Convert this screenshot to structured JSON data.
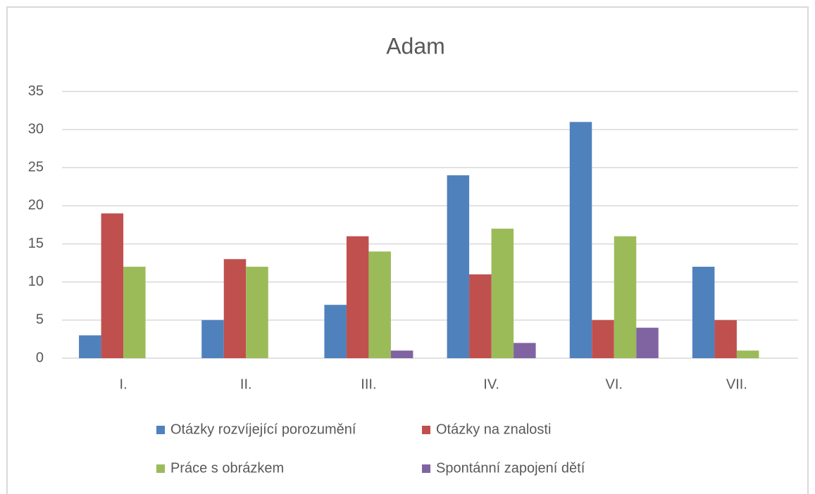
{
  "chart_data": {
    "type": "bar",
    "title": "Adam",
    "categories": [
      "I.",
      "II.",
      "III.",
      "IV.",
      "VI.",
      "VII."
    ],
    "series": [
      {
        "name": "Otázky rozvíjející porozumění",
        "color": "#4f81bd",
        "values": [
          3,
          5,
          7,
          24,
          31,
          12
        ]
      },
      {
        "name": "Otázky na znalosti",
        "color": "#c0504d",
        "values": [
          19,
          13,
          16,
          11,
          5,
          5
        ]
      },
      {
        "name": "Práce s obrázkem",
        "color": "#9bbb59",
        "values": [
          12,
          12,
          14,
          17,
          16,
          1
        ]
      },
      {
        "name": "Spontánní zapojení dětí",
        "color": "#8064a2",
        "values": [
          0,
          0,
          1,
          2,
          4,
          0
        ]
      }
    ],
    "ylim": [
      0,
      35
    ],
    "yticks": [
      0,
      5,
      10,
      15,
      20,
      25,
      30,
      35
    ],
    "grid": true,
    "legend": "bottom"
  }
}
